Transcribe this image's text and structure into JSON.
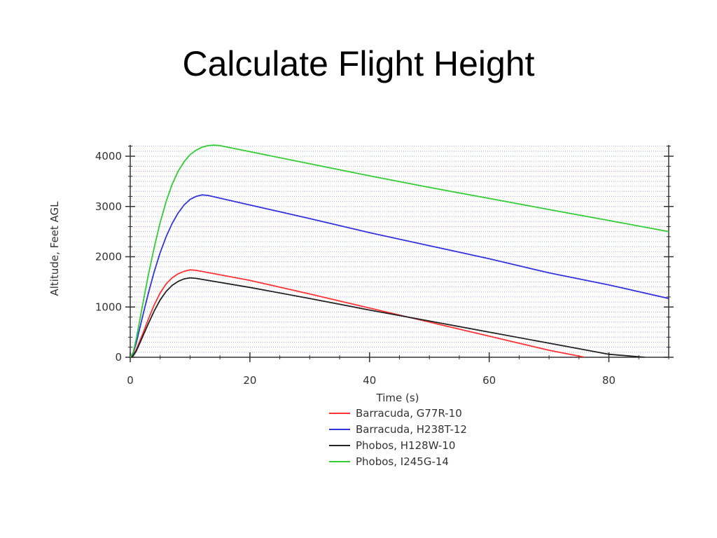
{
  "slide": {
    "title": "Calculate Flight Height"
  },
  "chart_data": {
    "type": "line",
    "title": "",
    "xlabel": "Time (s)",
    "ylabel": "Altitude, Feet AGL",
    "xlim": [
      0,
      90
    ],
    "ylim": [
      0,
      4200
    ],
    "xticks": [
      0,
      20,
      40,
      60,
      80
    ],
    "yticks": [
      0,
      1000,
      2000,
      3000,
      4000
    ],
    "grid": true,
    "legend_position": "bottom",
    "series": [
      {
        "name": "Barracuda, G77R-10",
        "color": "#ff3333",
        "x": [
          0,
          0.5,
          1,
          2,
          3,
          4,
          5,
          6,
          7,
          8,
          9,
          10,
          11,
          20,
          30,
          40,
          50,
          60,
          70,
          76
        ],
        "y": [
          0,
          40,
          150,
          440,
          750,
          1040,
          1280,
          1460,
          1580,
          1660,
          1710,
          1740,
          1730,
          1530,
          1260,
          980,
          700,
          420,
          140,
          0
        ]
      },
      {
        "name": "Barracuda, H238T-12",
        "color": "#3333dd",
        "x": [
          0,
          0.5,
          1,
          2,
          3,
          4,
          5,
          6,
          7,
          8,
          9,
          10,
          11,
          12,
          13,
          20,
          30,
          40,
          50,
          60,
          70,
          80,
          90
        ],
        "y": [
          0,
          80,
          280,
          780,
          1260,
          1700,
          2080,
          2400,
          2660,
          2870,
          3030,
          3140,
          3200,
          3230,
          3220,
          3030,
          2760,
          2480,
          2220,
          1960,
          1680,
          1440,
          1170
        ]
      },
      {
        "name": "Phobos, H128W-10",
        "color": "#222222",
        "x": [
          0,
          0.5,
          1,
          2,
          3,
          4,
          5,
          6,
          7,
          8,
          9,
          10,
          11,
          20,
          30,
          40,
          50,
          60,
          70,
          80,
          86
        ],
        "y": [
          0,
          30,
          120,
          390,
          660,
          920,
          1140,
          1310,
          1430,
          1510,
          1560,
          1580,
          1570,
          1390,
          1170,
          940,
          720,
          500,
          280,
          60,
          0
        ]
      },
      {
        "name": "Phobos, I245G-14",
        "color": "#33cc33",
        "x": [
          0,
          0.5,
          1,
          2,
          3,
          4,
          5,
          6,
          7,
          8,
          9,
          10,
          11,
          12,
          13,
          14,
          15,
          20,
          30,
          40,
          50,
          60,
          70,
          80,
          90
        ],
        "y": [
          0,
          100,
          360,
          1000,
          1620,
          2180,
          2680,
          3100,
          3440,
          3700,
          3890,
          4030,
          4120,
          4180,
          4210,
          4220,
          4210,
          4090,
          3850,
          3610,
          3380,
          3160,
          2940,
          2720,
          2500
        ]
      }
    ]
  }
}
